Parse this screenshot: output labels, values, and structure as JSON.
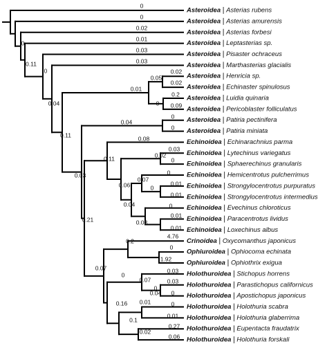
{
  "leaves": [
    {
      "class": "Asteroidea",
      "species": "Asterias rubens"
    },
    {
      "class": "Asteroidea",
      "species": "Asterias amurensis"
    },
    {
      "class": "Asteroidea",
      "species": "Asterias forbesi"
    },
    {
      "class": "Asteroidea",
      "species": "Leptasterias sp."
    },
    {
      "class": "Asteroidea",
      "species": "Pisaster ochraceus"
    },
    {
      "class": "Asteroidea",
      "species": "Marthasterias glacialis"
    },
    {
      "class": "Asteroidea",
      "species": "Henricia sp."
    },
    {
      "class": "Asteroidea",
      "species": "Echinaster spinulosus"
    },
    {
      "class": "Asteroidea",
      "species": "Luidia quinaria"
    },
    {
      "class": "Asteroidea",
      "species": "Pericoblaster folliculatus"
    },
    {
      "class": "Asteroidea",
      "species": "Patiria pectinifera"
    },
    {
      "class": "Asteroidea",
      "species": "Patiria miniata"
    },
    {
      "class": "Echinoidea",
      "species": "Echinarachnius parma"
    },
    {
      "class": "Echinoidea",
      "species": "Lytechinus variegatus"
    },
    {
      "class": "Echinoidea",
      "species": "Sphaerechinus granularis"
    },
    {
      "class": "Echinoidea",
      "species": "Hemicentrotus pulcherrimus"
    },
    {
      "class": "Echinoidea",
      "species": "Strongylocentrotus purpuratus"
    },
    {
      "class": "Echinoidea",
      "species": "Strongylocentrotus intermedius"
    },
    {
      "class": "Echinoidea",
      "species": "Evechinus chloroticus"
    },
    {
      "class": "Echinoidea",
      "species": "Paracentrotus lividus"
    },
    {
      "class": "Echinoidea",
      "species": "Loxechinus albus"
    },
    {
      "class": "Crinoidea",
      "species": "Oxycomanthus japonicus"
    },
    {
      "class": "Ophiuroidea",
      "species": "Ophiocoma echinata"
    },
    {
      "class": "Ophiuroidea",
      "species": "Ophiothrix exigua"
    },
    {
      "class": "Holothuroidea",
      "species": "Stichopus horrens"
    },
    {
      "class": "Holothuroidea",
      "species": "Parastichopus californicus"
    },
    {
      "class": "Holothuroidea",
      "species": "Apostichopus japonicus"
    },
    {
      "class": "Holothuroidea",
      "species": "Holothuria scabra"
    },
    {
      "class": "Holothuroidea",
      "species": "Holothuria glaberrima"
    },
    {
      "class": "Holothuroidea",
      "species": "Eupentacta fraudatrix"
    },
    {
      "class": "Holothuroidea",
      "species": "Holothuria forskali"
    }
  ],
  "branch_labels": [
    "0",
    "0",
    "0.02",
    "0",
    "0.01",
    "0.11",
    "0.03",
    "0",
    "0.03",
    "0.04",
    "0.05",
    "0.02",
    "0.02",
    "0.01",
    "0.2",
    "0",
    "0.09",
    "0.11",
    "0.04",
    "0",
    "0",
    "0.08",
    "0.11",
    "0.03",
    "0.02",
    "0",
    "0.03",
    "0.07",
    "0",
    "0.06",
    "0",
    "0.01",
    "0.01",
    "0.04",
    "0",
    "0.03",
    "0.01",
    "0.01",
    "0.21",
    "0.2",
    "4.76",
    "0",
    "1.92",
    "0.07",
    "0",
    "0.03",
    "0.07",
    "0.03",
    "0",
    "0.04",
    "0",
    "0.16",
    "0.01",
    "0",
    "0.1",
    "0.01",
    "0.27",
    "0.02",
    "0.06"
  ]
}
